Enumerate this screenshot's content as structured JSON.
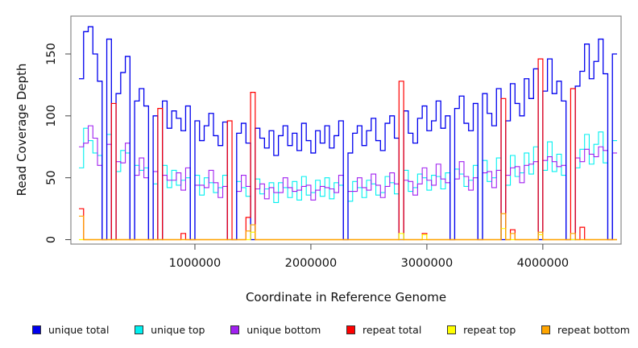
{
  "figure": {
    "x_axis_label": "Coordinate in Reference Genome",
    "y_axis_label": "Read Coverage Depth"
  },
  "legend": {
    "items": [
      {
        "label": "unique total",
        "color": "#0000EE"
      },
      {
        "label": "unique top",
        "color": "#00F0F0"
      },
      {
        "label": "unique bottom",
        "color": "#A020F0"
      },
      {
        "label": "repeat total",
        "color": "#FF0000"
      },
      {
        "label": "repeat top",
        "color": "#FFFF00"
      },
      {
        "label": "repeat bottom",
        "color": "#FFA500"
      }
    ]
  },
  "chart_data": {
    "type": "line",
    "line_style": "step",
    "title": "",
    "xlabel": "Coordinate in Reference Genome",
    "ylabel": "Read Coverage Depth",
    "xlim": [
      0,
      4640000
    ],
    "ylim": [
      0,
      180
    ],
    "grid": false,
    "legend_position": "bottom",
    "x_ticks": [
      1000000,
      2000000,
      3000000,
      4000000
    ],
    "x_tick_labels": [
      "1000000",
      "2000000",
      "3000000",
      "4000000"
    ],
    "y_ticks": [
      0,
      50,
      100,
      150
    ],
    "y_tick_labels": [
      "0",
      "50",
      "100",
      "150"
    ],
    "x_start": 0,
    "x_step": 40000,
    "axis_color": "#888888",
    "tick_color": "#444444",
    "series": [
      {
        "name": "unique top",
        "color": "#00F0F0",
        "width": 1.1,
        "values": [
          58,
          90,
          80,
          70,
          68,
          0,
          85,
          0,
          55,
          72,
          70,
          0,
          60,
          56,
          58,
          0,
          45,
          0,
          60,
          42,
          56,
          44,
          48,
          50,
          0,
          52,
          36,
          50,
          46,
          38,
          42,
          52,
          0,
          0,
          47,
          42,
          35,
          0,
          49,
          37,
          41,
          46,
          30,
          46,
          42,
          34,
          47,
          32,
          51,
          36,
          38,
          48,
          35,
          50,
          33,
          46,
          44,
          0,
          31,
          47,
          42,
          34,
          48,
          45,
          36,
          38,
          51,
          46,
          37,
          0,
          56,
          39,
          42,
          53,
          50,
          40,
          52,
          51,
          41,
          54,
          0,
          57,
          53,
          43,
          48,
          60,
          0,
          64,
          47,
          50,
          66,
          0,
          44,
          68,
          51,
          54,
          70,
          53,
          75,
          0,
          56,
          79,
          55,
          69,
          52,
          0,
          0,
          58,
          73,
          85,
          61,
          77,
          87,
          62,
          0,
          80
        ]
      },
      {
        "name": "unique bottom",
        "color": "#A020F0",
        "width": 1.1,
        "values": [
          75,
          78,
          92,
          82,
          60,
          0,
          77,
          0,
          63,
          62,
          78,
          0,
          52,
          66,
          50,
          0,
          55,
          0,
          52,
          48,
          48,
          54,
          40,
          58,
          0,
          44,
          44,
          42,
          56,
          46,
          34,
          43,
          0,
          0,
          39,
          52,
          43,
          0,
          41,
          45,
          33,
          42,
          38,
          38,
          50,
          42,
          39,
          40,
          43,
          44,
          32,
          40,
          43,
          42,
          41,
          38,
          52,
          0,
          39,
          39,
          50,
          42,
          40,
          53,
          44,
          34,
          43,
          54,
          45,
          0,
          48,
          47,
          36,
          45,
          58,
          48,
          44,
          61,
          49,
          46,
          0,
          49,
          63,
          51,
          40,
          50,
          0,
          54,
          55,
          42,
          56,
          0,
          52,
          58,
          59,
          46,
          60,
          61,
          63,
          0,
          64,
          67,
          63,
          59,
          60,
          0,
          0,
          66,
          63,
          73,
          69,
          67,
          75,
          72,
          0,
          70
        ]
      },
      {
        "name": "unique total",
        "color": "#0000EE",
        "width": 1.3,
        "values": [
          130,
          168,
          172,
          150,
          128,
          0,
          162,
          0,
          118,
          135,
          148,
          0,
          112,
          122,
          108,
          0,
          100,
          0,
          112,
          90,
          104,
          98,
          88,
          108,
          0,
          96,
          80,
          92,
          102,
          84,
          76,
          95,
          0,
          0,
          86,
          94,
          78,
          0,
          90,
          82,
          74,
          88,
          68,
          84,
          92,
          76,
          86,
          72,
          94,
          80,
          70,
          88,
          78,
          92,
          74,
          84,
          96,
          0,
          70,
          86,
          92,
          76,
          88,
          98,
          80,
          72,
          94,
          100,
          82,
          0,
          104,
          86,
          78,
          98,
          108,
          88,
          96,
          112,
          90,
          100,
          0,
          106,
          116,
          94,
          88,
          110,
          0,
          118,
          102,
          92,
          122,
          0,
          96,
          126,
          110,
          100,
          130,
          114,
          138,
          0,
          120,
          146,
          118,
          128,
          112,
          0,
          0,
          124,
          136,
          158,
          130,
          144,
          162,
          134,
          0,
          150
        ]
      },
      {
        "name": "repeat total",
        "color": "#FF0000",
        "width": 1.2,
        "values": [
          25,
          0,
          0,
          0,
          0,
          0,
          0,
          110,
          0,
          0,
          0,
          0,
          0,
          0,
          0,
          0,
          0,
          106,
          0,
          0,
          0,
          0,
          5,
          0,
          0,
          0,
          0,
          0,
          0,
          0,
          0,
          0,
          96,
          0,
          0,
          0,
          18,
          119,
          0,
          0,
          0,
          0,
          0,
          0,
          0,
          0,
          0,
          0,
          0,
          0,
          0,
          0,
          0,
          0,
          0,
          0,
          0,
          0,
          0,
          0,
          0,
          0,
          0,
          0,
          0,
          0,
          0,
          0,
          0,
          128,
          0,
          0,
          0,
          0,
          5,
          0,
          0,
          0,
          0,
          0,
          0,
          0,
          0,
          0,
          0,
          0,
          0,
          0,
          0,
          0,
          0,
          114,
          0,
          8,
          0,
          0,
          0,
          0,
          0,
          146,
          0,
          0,
          0,
          0,
          0,
          0,
          122,
          0,
          10,
          0,
          0,
          0,
          0,
          0,
          0,
          0
        ]
      },
      {
        "name": "repeat top",
        "color": "#FFFF00",
        "width": 1.2,
        "values": [
          0,
          0,
          0,
          0,
          0,
          0,
          0,
          0,
          0,
          0,
          0,
          0,
          0,
          0,
          0,
          0,
          0,
          0,
          0,
          0,
          0,
          0,
          0,
          0,
          0,
          0,
          0,
          0,
          0,
          0,
          0,
          0,
          0,
          0,
          0,
          0,
          0,
          6,
          0,
          0,
          0,
          0,
          0,
          0,
          0,
          0,
          0,
          0,
          0,
          0,
          0,
          0,
          0,
          0,
          0,
          0,
          0,
          0,
          0,
          0,
          0,
          0,
          0,
          0,
          0,
          0,
          0,
          0,
          0,
          5,
          0,
          0,
          0,
          0,
          4,
          0,
          0,
          0,
          0,
          0,
          0,
          0,
          0,
          0,
          0,
          0,
          0,
          0,
          0,
          0,
          0,
          9,
          0,
          0,
          0,
          0,
          0,
          0,
          0,
          4,
          0,
          0,
          0,
          0,
          0,
          0,
          0,
          0,
          0,
          0,
          0,
          0,
          0,
          0,
          0,
          0
        ]
      },
      {
        "name": "repeat bottom",
        "color": "#FFA500",
        "width": 1.2,
        "values": [
          19,
          0,
          0,
          0,
          0,
          0,
          0,
          0,
          0,
          0,
          0,
          0,
          0,
          0,
          0,
          0,
          0,
          0,
          0,
          0,
          0,
          0,
          0,
          0,
          0,
          0,
          0,
          0,
          0,
          0,
          0,
          0,
          0,
          0,
          0,
          0,
          7,
          12,
          0,
          0,
          0,
          0,
          0,
          0,
          0,
          0,
          0,
          0,
          0,
          0,
          0,
          0,
          0,
          0,
          0,
          0,
          0,
          0,
          0,
          0,
          0,
          0,
          0,
          0,
          0,
          0,
          0,
          0,
          0,
          0,
          0,
          0,
          0,
          0,
          0,
          0,
          0,
          0,
          0,
          0,
          0,
          0,
          0,
          0,
          0,
          0,
          0,
          0,
          0,
          0,
          0,
          21,
          0,
          5,
          0,
          0,
          0,
          0,
          0,
          6,
          0,
          0,
          0,
          0,
          0,
          0,
          5,
          0,
          0,
          0,
          0,
          0,
          0,
          0,
          0,
          0
        ]
      }
    ]
  }
}
